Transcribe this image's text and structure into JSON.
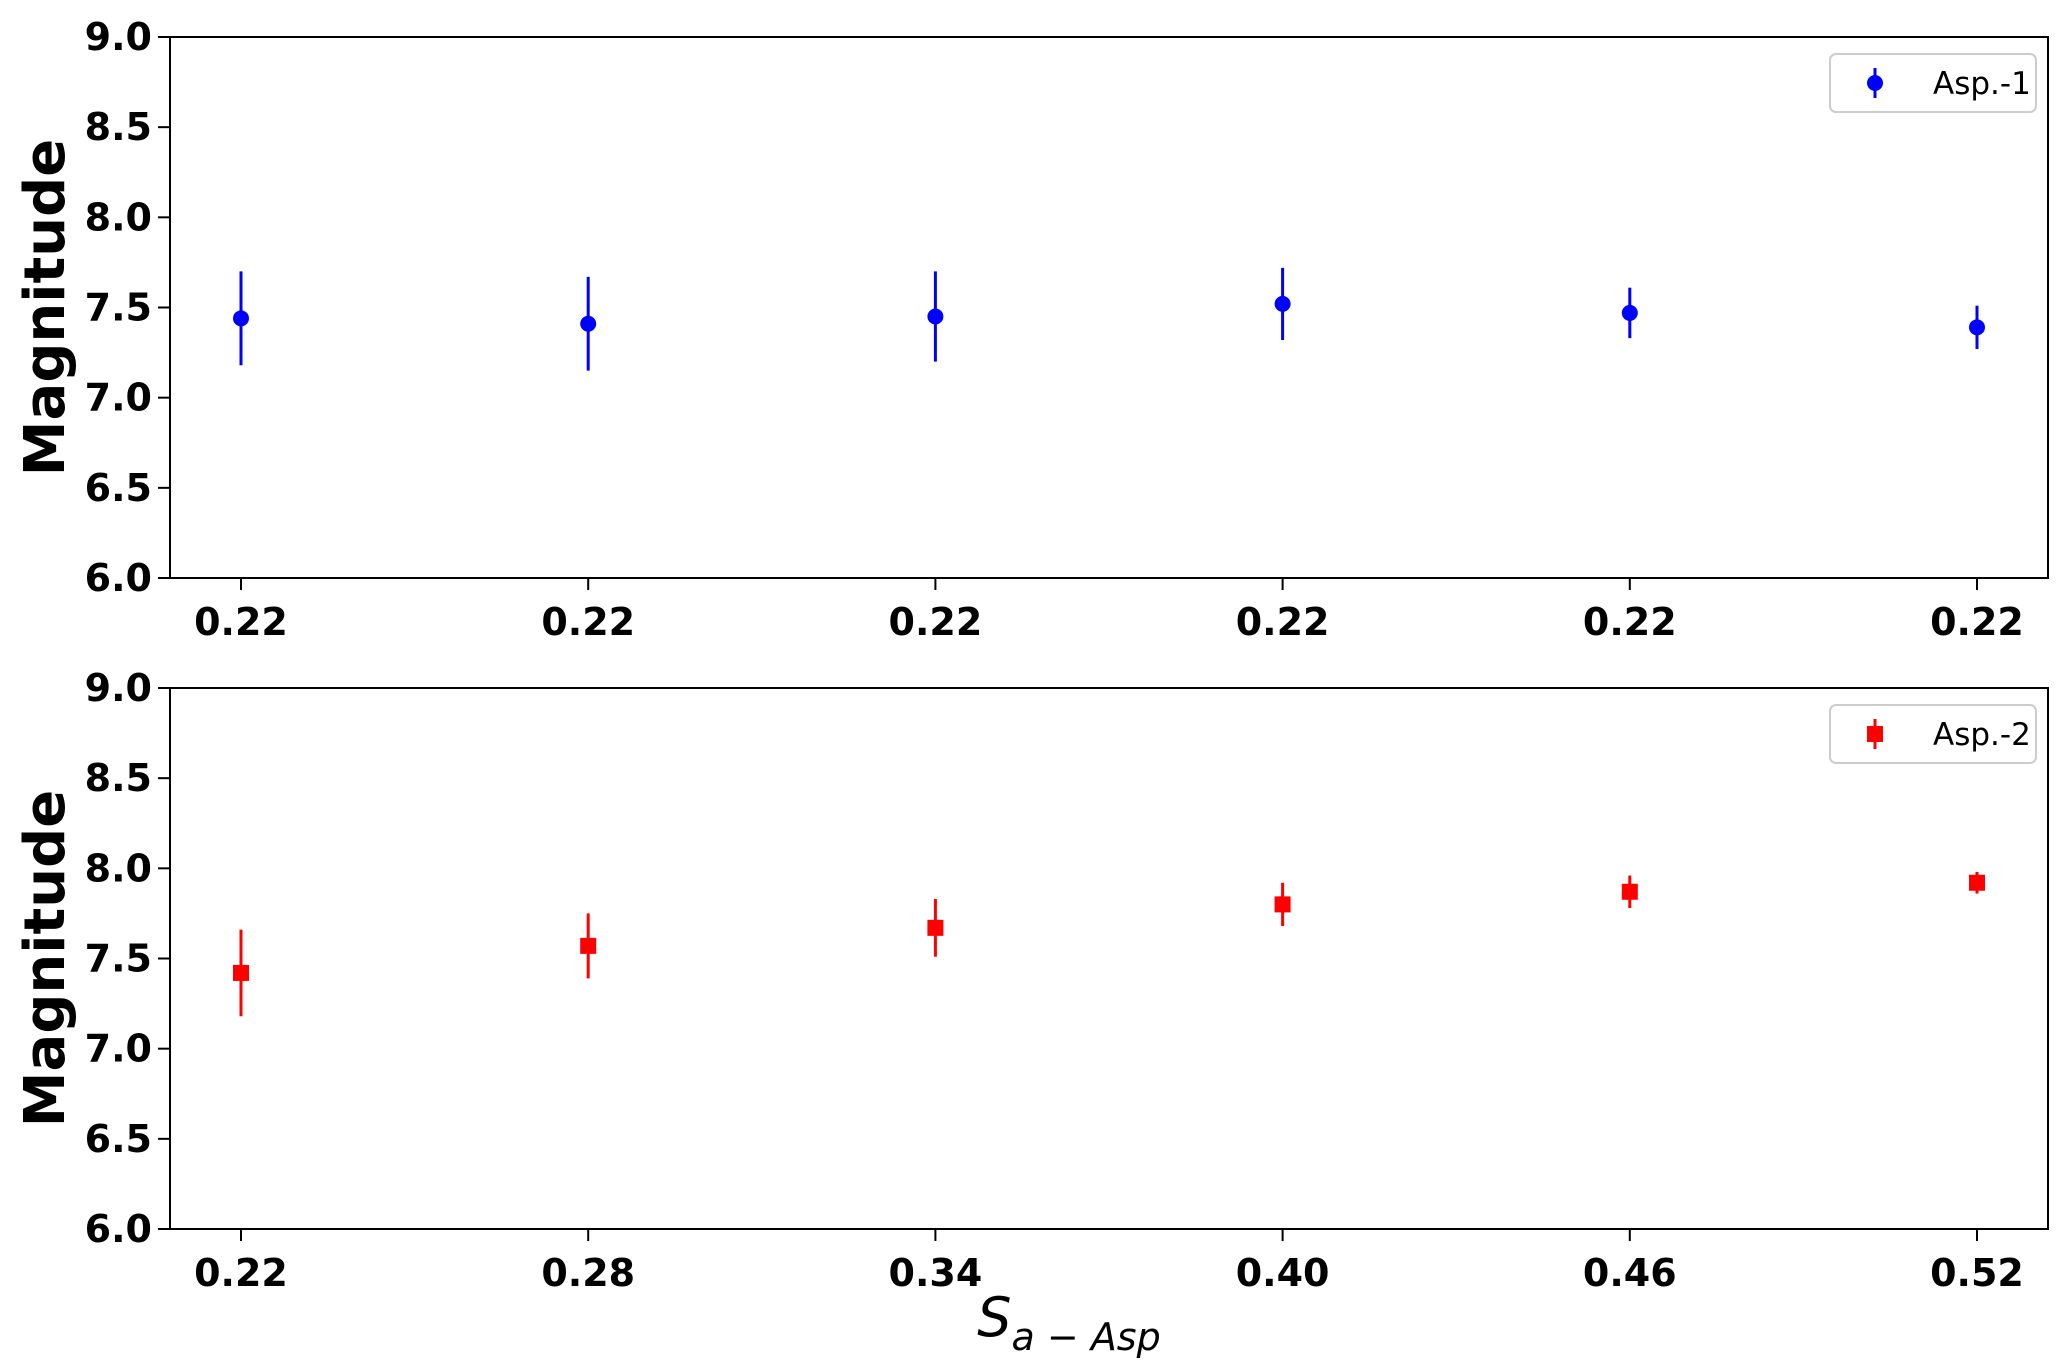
{
  "chart_data": [
    {
      "type": "scatter",
      "ylabel": "Magnitude",
      "xlabel": "",
      "ylim": [
        6.0,
        9.0
      ],
      "yticks": [
        "6.0",
        "6.5",
        "7.0",
        "7.5",
        "8.0",
        "8.5",
        "9.0"
      ],
      "categories": [
        "0.22",
        "0.22",
        "0.22",
        "0.22",
        "0.22",
        "0.22"
      ],
      "legend_position": "top-right",
      "grid": false,
      "series": [
        {
          "name": "Asp.-1",
          "color": "#0000ff",
          "marker": "circle",
          "values": [
            7.44,
            7.41,
            7.45,
            7.52,
            7.47,
            7.39
          ],
          "errors": [
            0.26,
            0.26,
            0.25,
            0.2,
            0.14,
            0.12
          ]
        }
      ]
    },
    {
      "type": "scatter",
      "ylabel": "Magnitude",
      "xlabel": "S_{a-Asp}",
      "xlabel_main": "S",
      "xlabel_sub": "a − Asp",
      "ylim": [
        6.0,
        9.0
      ],
      "yticks": [
        "6.0",
        "6.5",
        "7.0",
        "7.5",
        "8.0",
        "8.5",
        "9.0"
      ],
      "categories": [
        "0.22",
        "0.28",
        "0.34",
        "0.40",
        "0.46",
        "0.52"
      ],
      "legend_position": "top-right",
      "grid": false,
      "series": [
        {
          "name": "Asp.-2",
          "color": "#ff0000",
          "marker": "square",
          "values": [
            7.42,
            7.57,
            7.67,
            7.8,
            7.87,
            7.92
          ],
          "errors": [
            0.24,
            0.18,
            0.16,
            0.12,
            0.09,
            0.06
          ]
        }
      ]
    }
  ]
}
